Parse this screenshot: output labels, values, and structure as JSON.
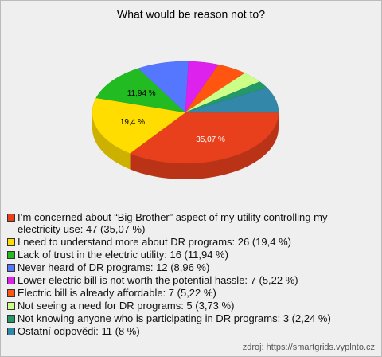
{
  "chart_data": {
    "type": "pie",
    "title": "What would be reason not to?",
    "categories": [
      "I’m concerned about “Big Brother” aspect of my utility controlling my electricity use: 47 (35,07 %)",
      "I need to understand more about DR programs: 26 (19,4 %)",
      "Lack of trust in the electric utility: 16 (11,94 %)",
      "Never heard of DR programs: 12 (8,96 %)",
      "Lower electric bill is not worth the potential hassle: 7 (5,22 %)",
      "Electric bill is already affordable: 7 (5,22 %)",
      "Not seeing a need for DR programs: 5 (3,73 %)",
      "Not knowing anyone who is participating in DR programs: 3 (2,24 %)",
      "Ostatní odpovědi: 11 (8 %)"
    ],
    "values": [
      35.07,
      19.4,
      11.94,
      8.96,
      5.22,
      5.22,
      3.73,
      2.24,
      8
    ],
    "value_labels": [
      "35,07 %",
      "19,4 %",
      "11,94 %",
      null,
      null,
      null,
      null,
      null,
      null
    ],
    "colors": [
      "#e8401c",
      "#ffdd00",
      "#22bb22",
      "#5577ff",
      "#dd22ee",
      "#ff5511",
      "#ccff88",
      "#229966",
      "#3388aa"
    ],
    "source": "zdroj: https://smartgrids.vyplnto.cz"
  }
}
